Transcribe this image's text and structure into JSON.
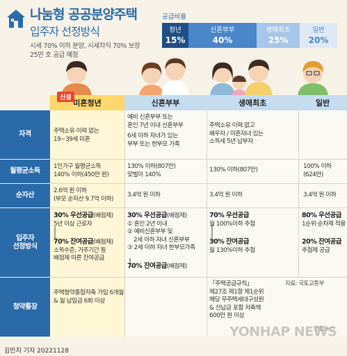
{
  "header": {
    "title": "나눔형 공공분양주택",
    "subtitle": "입주자 선정방식",
    "desc1": "시세 70% 이하 분양, 시세차익 70% 보장",
    "desc2": "25만 호 공급 예정"
  },
  "ratio": {
    "label": "공급비율",
    "items": [
      {
        "name": "청년",
        "value": "15%",
        "bg": "#1f4f85",
        "fg": "#ffffff"
      },
      {
        "name": "신혼부부",
        "value": "40%",
        "bg": "#4a86c8",
        "fg": "#ffffff"
      },
      {
        "name": "생애최초",
        "value": "25%",
        "bg": "#a8c6e8",
        "fg": "#ffffff"
      },
      {
        "name": "일반",
        "value": "20%",
        "bg": "#dfe9f5",
        "fg": "#4a86c8"
      }
    ]
  },
  "columns": {
    "new_badge": "신설",
    "c1": "미혼청년",
    "c2": "신혼부부",
    "c3": "생애최초",
    "c4": "일반"
  },
  "rows": {
    "qual": {
      "label": "자격",
      "c1_1": "주택소유 이력 없는",
      "c1_2": "19~39세 미혼",
      "c2_1": "예비 신혼부부 또는",
      "c2_2": "혼인 7년 이내 신혼부부",
      "c2_3": "6세 이하 자녀가 있는",
      "c2_4": "부부 또는 한부모 가족",
      "c3_1": "주택소유 이력 없고",
      "c3_2": "배우자 / 미혼자녀 있는",
      "c3_3": "소득세 5년 납부자"
    },
    "income": {
      "label": "월평균소득",
      "c1_1": "1인가구 월평균소득",
      "c1_2": "140% 이하(450만 원)",
      "c2_1": "130% 이하(807만)",
      "c2_2": "맞벌이 140%",
      "c3_1": "130% 이하(807만)",
      "c4_1": "100% 이하",
      "c4_2": "(624만)"
    },
    "assets": {
      "label": "순자산",
      "c1_1": "2.6억 원 이하",
      "c1_2": "(부모 순자산 9.7억 이하)",
      "c2_1": "3.4억 원 이하",
      "c3_1": "3.4억 원 이하",
      "c4_1": "3.4억 원 이하"
    },
    "method": {
      "label1": "입주자",
      "label2": "선정방식",
      "c1_a": "30% 우선공급",
      "c1_a2": "(배점제)",
      "c1_b": "5년 이상 근로자",
      "c1_c": "70% 잔여공급",
      "c1_c2": "(배점제)",
      "c1_d": "소득수준, 거주기간 등",
      "c1_e": "배점제 따른 잔여공급",
      "c2_a": "30% 우선공급",
      "c2_a2": "(배점제)",
      "c2_b": "① 혼인 2년 이내",
      "c2_c": "② 예비신혼부부 및",
      "c2_d": "2세 이하 자녀 신혼부부",
      "c2_e": "③ 2세 이하 자녀 한부모가족",
      "c2_f": "70% 잔여공급",
      "c2_f2": "(배점제)",
      "c3_a": "70% 우선공급",
      "c3_b": "월 100%이하 추첨",
      "c3_c": "30% 잔여공급",
      "c3_d": "월 130%이하 추첨",
      "c4_a": "80% 우선공급",
      "c4_b": "1순위·순차제 적용",
      "c4_c": "20% 잔여공급",
      "c4_d": "추첨제 공급"
    },
    "savings": {
      "label": "청약통장",
      "c1_1": "주택청약종합저축 가입 6개월",
      "c1_2": "& 월 납입금 6회 이상",
      "c3_1": "「주택공급규칙」",
      "c3_2": "제27조 제1항 제1순위",
      "c3_3": "해당 무주택세대구성원",
      "c3_4": "& 선납금 포함 저축액",
      "c3_5": "600만 원 이상",
      "source": "자료: 국토교통부"
    }
  },
  "footer": {
    "credit": "김민지 기자  20221128",
    "agency_small": "연합뉴스",
    "agency_big": "YONHAP NEWS"
  }
}
